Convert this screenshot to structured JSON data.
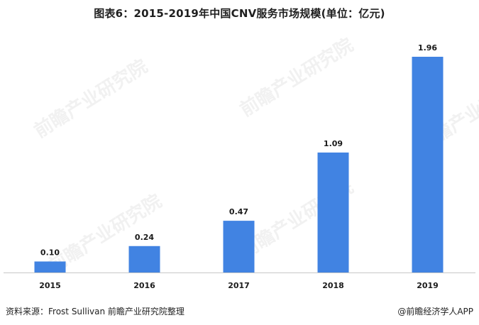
{
  "chart_data": {
    "type": "bar",
    "title": "图表6：2015-2019年中国CNV服务市场规模(单位：亿元)",
    "categories": [
      "2015",
      "2016",
      "2017",
      "2018",
      "2019"
    ],
    "values": [
      0.1,
      0.24,
      0.47,
      1.09,
      1.96
    ],
    "value_labels": [
      "0.10",
      "0.24",
      "0.47",
      "1.09",
      "1.96"
    ],
    "ylim": [
      0,
      1.96
    ],
    "grid": false,
    "legend": "none",
    "bar_color": "#4183E2"
  },
  "footer": {
    "source": "资料来源：Frost Sullivan 前瞻产业研究院整理",
    "brand": "@前瞻经济学人APP"
  },
  "watermark": {
    "text": "前瞻产业研究院"
  }
}
